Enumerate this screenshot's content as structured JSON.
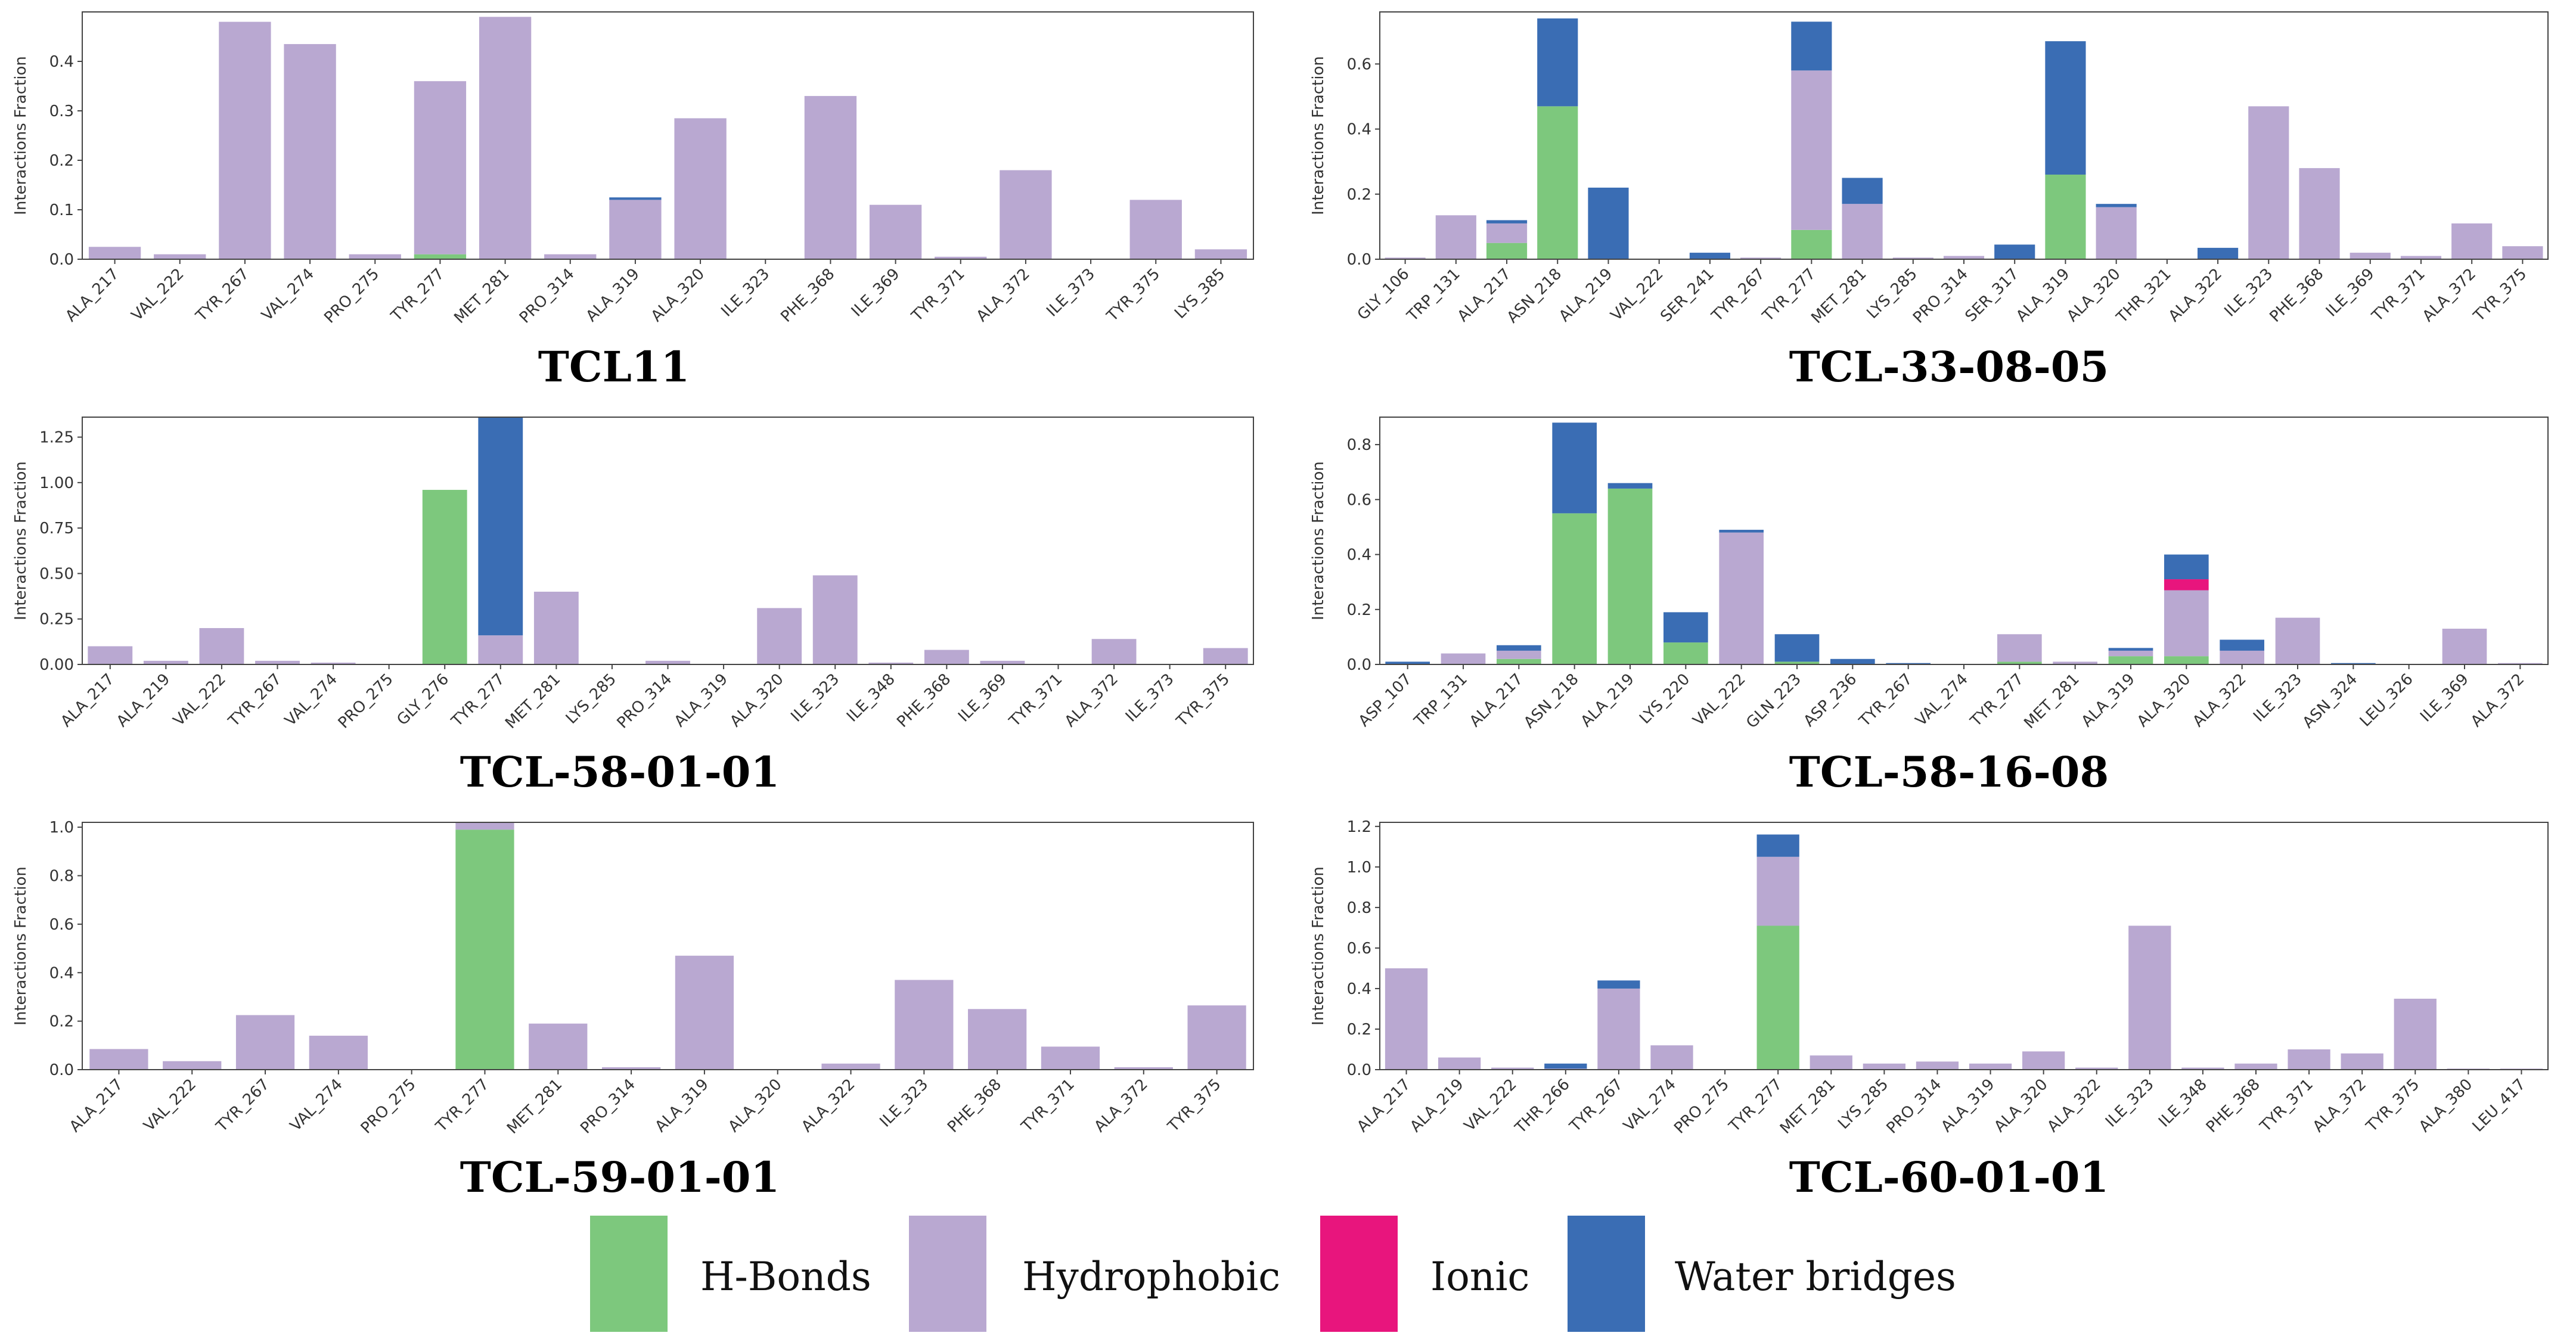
{
  "colors": {
    "hbonds": "#7dc87d",
    "hydrophobic": "#b9a8d1",
    "ionic": "#e8157d",
    "water": "#3a6db4"
  },
  "legend": {
    "items": [
      {
        "key": "hbonds",
        "label": "H-Bonds"
      },
      {
        "key": "hydrophobic",
        "label": "Hydrophobic"
      },
      {
        "key": "ionic",
        "label": "Ionic"
      },
      {
        "key": "water",
        "label": "Water bridges"
      }
    ]
  },
  "chart_data": [
    {
      "type": "bar",
      "stacked": true,
      "title": "TCL11",
      "ylabel": "Interactions Fraction",
      "ylim": [
        0,
        0.5
      ],
      "yticks": [
        0.0,
        0.1,
        0.2,
        0.3,
        0.4
      ],
      "categories": [
        "ALA_217",
        "VAL_222",
        "TYR_267",
        "VAL_274",
        "PRO_275",
        "TYR_277",
        "MET_281",
        "PRO_314",
        "ALA_319",
        "ALA_320",
        "ILE_323",
        "PHE_368",
        "ILE_369",
        "TYR_371",
        "ALA_372",
        "ILE_373",
        "TYR_375",
        "LYS_385"
      ],
      "series": [
        {
          "name": "H-Bonds",
          "key": "hbonds",
          "values": [
            0,
            0,
            0,
            0,
            0,
            0.01,
            0,
            0,
            0,
            0,
            0,
            0,
            0,
            0,
            0,
            0,
            0,
            0
          ]
        },
        {
          "name": "Hydrophobic",
          "key": "hydrophobic",
          "values": [
            0.025,
            0.01,
            0.48,
            0.435,
            0.01,
            0.35,
            0.49,
            0.01,
            0.12,
            0.285,
            0,
            0.33,
            0.11,
            0.005,
            0.18,
            0,
            0.12,
            0.02
          ]
        },
        {
          "name": "Ionic",
          "key": "ionic",
          "values": [
            0,
            0,
            0,
            0,
            0,
            0,
            0,
            0,
            0,
            0,
            0,
            0,
            0,
            0,
            0,
            0,
            0,
            0
          ]
        },
        {
          "name": "Water bridges",
          "key": "water",
          "values": [
            0,
            0,
            0,
            0,
            0,
            0,
            0,
            0,
            0.005,
            0,
            0,
            0,
            0,
            0,
            0,
            0,
            0,
            0
          ]
        }
      ]
    },
    {
      "type": "bar",
      "stacked": true,
      "title": "TCL-33-08-05",
      "ylabel": "Interactions Fraction",
      "ylim": [
        0,
        0.76
      ],
      "yticks": [
        0.0,
        0.2,
        0.4,
        0.6
      ],
      "categories": [
        "GLY_106",
        "TRP_131",
        "ALA_217",
        "ASN_218",
        "ALA_219",
        "VAL_222",
        "SER_241",
        "TYR_267",
        "TYR_277",
        "MET_281",
        "LYS_285",
        "PRO_314",
        "SER_317",
        "ALA_319",
        "ALA_320",
        "THR_321",
        "ALA_322",
        "ILE_323",
        "PHE_368",
        "ILE_369",
        "TYR_371",
        "ALA_372",
        "TYR_375"
      ],
      "series": [
        {
          "name": "H-Bonds",
          "key": "hbonds",
          "values": [
            0,
            0,
            0.05,
            0.47,
            0,
            0,
            0,
            0,
            0.09,
            0,
            0,
            0,
            0,
            0.26,
            0,
            0,
            0,
            0,
            0,
            0,
            0,
            0,
            0
          ]
        },
        {
          "name": "Hydrophobic",
          "key": "hydrophobic",
          "values": [
            0.005,
            0.135,
            0.06,
            0,
            0,
            0,
            0,
            0.005,
            0.49,
            0.17,
            0.005,
            0.01,
            0,
            0,
            0.16,
            0,
            0,
            0.47,
            0.28,
            0.02,
            0.01,
            0.11,
            0.04
          ]
        },
        {
          "name": "Ionic",
          "key": "ionic",
          "values": [
            0,
            0,
            0,
            0,
            0,
            0,
            0,
            0,
            0,
            0,
            0,
            0,
            0,
            0,
            0,
            0,
            0,
            0,
            0,
            0,
            0,
            0,
            0
          ]
        },
        {
          "name": "Water bridges",
          "key": "water",
          "values": [
            0,
            0,
            0.01,
            0.27,
            0.22,
            0,
            0.02,
            0,
            0.15,
            0.08,
            0,
            0,
            0.045,
            0.41,
            0.01,
            0,
            0.035,
            0,
            0,
            0,
            0,
            0,
            0
          ]
        }
      ]
    },
    {
      "type": "bar",
      "stacked": true,
      "title": "TCL-58-01-01",
      "ylabel": "Interactions Fraction",
      "ylim": [
        0,
        1.36
      ],
      "yticks": [
        0.0,
        0.25,
        0.5,
        0.75,
        1.0,
        1.25
      ],
      "yticklabels": [
        "0.00",
        "0.25",
        "0.50",
        "0.75",
        "1.00",
        "1.25"
      ],
      "categories": [
        "ALA_217",
        "ALA_219",
        "VAL_222",
        "TYR_267",
        "VAL_274",
        "PRO_275",
        "GLY_276",
        "TYR_277",
        "MET_281",
        "LYS_285",
        "PRO_314",
        "ALA_319",
        "ALA_320",
        "ILE_323",
        "ILE_348",
        "PHE_368",
        "ILE_369",
        "TYR_371",
        "ALA_372",
        "ILE_373",
        "TYR_375"
      ],
      "series": [
        {
          "name": "H-Bonds",
          "key": "hbonds",
          "values": [
            0,
            0,
            0,
            0,
            0,
            0,
            0.96,
            0,
            0,
            0,
            0,
            0,
            0,
            0,
            0,
            0,
            0,
            0,
            0,
            0,
            0
          ]
        },
        {
          "name": "Hydrophobic",
          "key": "hydrophobic",
          "values": [
            0.1,
            0.02,
            0.2,
            0.02,
            0.01,
            0,
            0,
            0.16,
            0.4,
            0,
            0.02,
            0,
            0.31,
            0.49,
            0.01,
            0.08,
            0.02,
            0,
            0.14,
            0,
            0.09
          ]
        },
        {
          "name": "Ionic",
          "key": "ionic",
          "values": [
            0,
            0,
            0,
            0,
            0,
            0,
            0,
            0,
            0,
            0,
            0,
            0,
            0,
            0,
            0,
            0,
            0,
            0,
            0,
            0,
            0
          ]
        },
        {
          "name": "Water bridges",
          "key": "water",
          "values": [
            0,
            0,
            0,
            0,
            0,
            0,
            0,
            1.2,
            0,
            0,
            0,
            0,
            0,
            0,
            0,
            0,
            0,
            0,
            0,
            0,
            0
          ]
        }
      ]
    },
    {
      "type": "bar",
      "stacked": true,
      "title": "TCL-58-16-08",
      "ylabel": "Interactions Fraction",
      "ylim": [
        0,
        0.9
      ],
      "yticks": [
        0.0,
        0.2,
        0.4,
        0.6,
        0.8
      ],
      "categories": [
        "ASP_107",
        "TRP_131",
        "ALA_217",
        "ASN_218",
        "ALA_219",
        "LYS_220",
        "VAL_222",
        "GLN_223",
        "ASP_236",
        "TYR_267",
        "VAL_274",
        "TYR_277",
        "MET_281",
        "ALA_319",
        "ALA_320",
        "ALA_322",
        "ILE_323",
        "ASN_324",
        "LEU_326",
        "ILE_369",
        "ALA_372"
      ],
      "series": [
        {
          "name": "H-Bonds",
          "key": "hbonds",
          "values": [
            0,
            0,
            0.02,
            0.55,
            0.64,
            0.08,
            0,
            0.01,
            0,
            0,
            0,
            0.01,
            0,
            0.03,
            0.03,
            0,
            0,
            0,
            0,
            0,
            0
          ]
        },
        {
          "name": "Hydrophobic",
          "key": "hydrophobic",
          "values": [
            0,
            0.04,
            0.03,
            0,
            0,
            0,
            0.48,
            0,
            0,
            0,
            0,
            0.1,
            0.01,
            0.02,
            0.24,
            0.05,
            0.17,
            0,
            0,
            0.13,
            0.005
          ]
        },
        {
          "name": "Ionic",
          "key": "ionic",
          "values": [
            0,
            0,
            0,
            0,
            0,
            0,
            0,
            0,
            0,
            0,
            0,
            0,
            0,
            0,
            0.04,
            0,
            0,
            0,
            0,
            0,
            0
          ]
        },
        {
          "name": "Water bridges",
          "key": "water",
          "values": [
            0.01,
            0,
            0.02,
            0.33,
            0.02,
            0.11,
            0.01,
            0.1,
            0.02,
            0.005,
            0,
            0,
            0,
            0.01,
            0.09,
            0.04,
            0,
            0.005,
            0,
            0,
            0
          ]
        }
      ]
    },
    {
      "type": "bar",
      "stacked": true,
      "title": "TCL-59-01-01",
      "ylabel": "Interactions Fraction",
      "ylim": [
        0,
        1.02
      ],
      "yticks": [
        0.0,
        0.2,
        0.4,
        0.6,
        0.8,
        1.0
      ],
      "categories": [
        "ALA_217",
        "VAL_222",
        "TYR_267",
        "VAL_274",
        "PRO_275",
        "TYR_277",
        "MET_281",
        "PRO_314",
        "ALA_319",
        "ALA_320",
        "ALA_322",
        "ILE_323",
        "PHE_368",
        "TYR_371",
        "ALA_372",
        "TYR_375"
      ],
      "series": [
        {
          "name": "H-Bonds",
          "key": "hbonds",
          "values": [
            0,
            0,
            0,
            0,
            0,
            0.99,
            0,
            0,
            0,
            0,
            0,
            0,
            0,
            0,
            0,
            0
          ]
        },
        {
          "name": "Hydrophobic",
          "key": "hydrophobic",
          "values": [
            0.085,
            0.035,
            0.225,
            0.14,
            0,
            0.03,
            0.19,
            0.01,
            0.47,
            0,
            0.025,
            0.37,
            0.25,
            0.095,
            0.01,
            0.265
          ]
        },
        {
          "name": "Ionic",
          "key": "ionic",
          "values": [
            0,
            0,
            0,
            0,
            0,
            0,
            0,
            0,
            0,
            0,
            0,
            0,
            0,
            0,
            0,
            0
          ]
        },
        {
          "name": "Water bridges",
          "key": "water",
          "values": [
            0,
            0,
            0,
            0,
            0,
            0,
            0,
            0,
            0,
            0,
            0,
            0,
            0,
            0,
            0,
            0
          ]
        }
      ]
    },
    {
      "type": "bar",
      "stacked": true,
      "title": "TCL-60-01-01",
      "ylabel": "Interactions Fraction",
      "ylim": [
        0,
        1.22
      ],
      "yticks": [
        0.0,
        0.2,
        0.4,
        0.6,
        0.8,
        1.0,
        1.2
      ],
      "categories": [
        "ALA_217",
        "ALA_219",
        "VAL_222",
        "THR_266",
        "TYR_267",
        "VAL_274",
        "PRO_275",
        "TYR_277",
        "MET_281",
        "LYS_285",
        "PRO_314",
        "ALA_319",
        "ALA_320",
        "ALA_322",
        "ILE_323",
        "ILE_348",
        "PHE_368",
        "TYR_371",
        "ALA_372",
        "TYR_375",
        "ALA_380",
        "LEU_417"
      ],
      "series": [
        {
          "name": "H-Bonds",
          "key": "hbonds",
          "values": [
            0,
            0,
            0,
            0,
            0,
            0,
            0,
            0.71,
            0,
            0,
            0,
            0,
            0,
            0,
            0,
            0,
            0,
            0,
            0,
            0,
            0,
            0
          ]
        },
        {
          "name": "Hydrophobic",
          "key": "hydrophobic",
          "values": [
            0.5,
            0.06,
            0.01,
            0.005,
            0.4,
            0.12,
            0,
            0.34,
            0.07,
            0.03,
            0.04,
            0.03,
            0.09,
            0.01,
            0.71,
            0.01,
            0.03,
            0.1,
            0.08,
            0.35,
            0.005,
            0.005
          ]
        },
        {
          "name": "Ionic",
          "key": "ionic",
          "values": [
            0,
            0,
            0,
            0,
            0,
            0,
            0,
            0,
            0,
            0,
            0,
            0,
            0,
            0,
            0,
            0,
            0,
            0,
            0,
            0,
            0,
            0
          ]
        },
        {
          "name": "Water bridges",
          "key": "water",
          "values": [
            0,
            0,
            0,
            0.025,
            0.04,
            0,
            0,
            0.11,
            0,
            0,
            0,
            0,
            0,
            0,
            0,
            0,
            0,
            0,
            0,
            0,
            0,
            0
          ]
        }
      ]
    }
  ]
}
